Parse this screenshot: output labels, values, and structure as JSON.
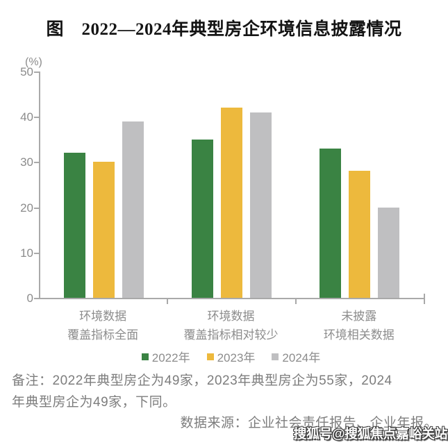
{
  "title": "图　2022—2024年典型房企环境信息披露情况",
  "y_axis_unit": "(%)",
  "chart_data": {
    "type": "bar",
    "title": "2022—2024年典型房企环境信息披露情况",
    "categories": [
      [
        "环境数据",
        "覆盖指标全面"
      ],
      [
        "环境数据",
        "覆盖指标相对较少"
      ],
      [
        "未披露",
        "环境相关数据"
      ]
    ],
    "series": [
      {
        "name": "2022年",
        "color": "#3A8343",
        "values": [
          32,
          35,
          33
        ]
      },
      {
        "name": "2023年",
        "color": "#EDB93D",
        "values": [
          30,
          42,
          28
        ]
      },
      {
        "name": "2024年",
        "color": "#BFBFC1",
        "values": [
          39,
          41,
          20
        ]
      }
    ],
    "xlabel": "",
    "ylabel": "(%)",
    "ylim": [
      0,
      50
    ],
    "yticks": [
      0,
      10,
      20,
      30,
      40,
      50
    ],
    "grid": false,
    "legend_position": "bottom"
  },
  "notes": [
    "备注：2022年典型房企为49家，2023年典型房企为55家，2024",
    "年典型房企为49家，下同。"
  ],
  "source": "数据来源：企业社会责任报告、企业年报。",
  "watermark": "搜狐号@搜狐焦点嘉峪关站",
  "colors": {
    "axis": "#A9A9A9",
    "muted_text": "#8C8C8C",
    "note_text": "#7D7D7D",
    "title_text": "#141414"
  }
}
